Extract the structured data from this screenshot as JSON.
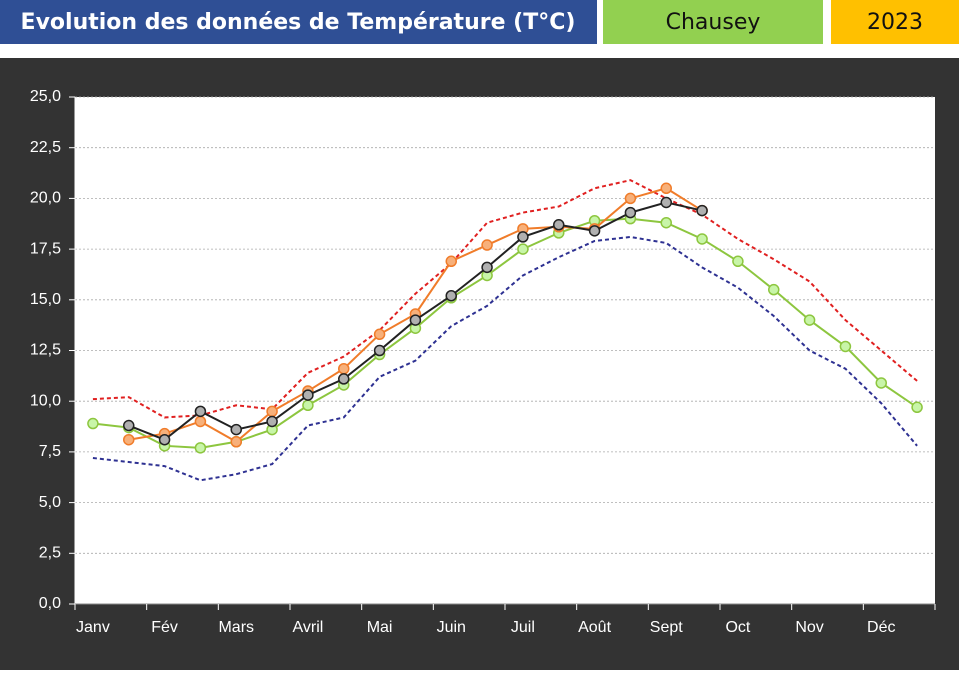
{
  "header": {
    "title": "Evolution des données de Température (T°C)",
    "site": "Chausey",
    "year": "2023"
  },
  "chart_data": {
    "type": "line",
    "categories": [
      "Janv",
      null,
      "Fév",
      null,
      "Mars",
      null,
      "Avril",
      null,
      "Mai",
      null,
      "Juin",
      null,
      "Juil",
      null,
      "Août",
      null,
      "Sept",
      null,
      "Oct",
      null,
      "Nov",
      null,
      "Déc",
      null
    ],
    "series": [
      {
        "color": "#e02020",
        "dashed": true,
        "markers": false,
        "values": [
          10.1,
          10.2,
          9.2,
          9.3,
          9.8,
          9.6,
          11.4,
          12.2,
          13.5,
          15.3,
          16.8,
          18.8,
          19.3,
          19.6,
          20.5,
          20.9,
          20.0,
          19.2,
          18.0,
          17.0,
          15.9,
          14.0,
          12.5,
          11.0
        ]
      },
      {
        "color": "#2e3192",
        "dashed": true,
        "markers": false,
        "values": [
          7.2,
          7.0,
          6.8,
          6.1,
          6.4,
          6.9,
          8.8,
          9.2,
          11.2,
          12.0,
          13.7,
          14.7,
          16.2,
          17.1,
          17.9,
          18.1,
          17.8,
          16.6,
          15.6,
          14.2,
          12.5,
          11.6,
          9.9,
          7.8
        ]
      },
      {
        "color": "#8dc63f",
        "marker_color": "#c8f5a8",
        "dashed": false,
        "markers": true,
        "values": [
          8.9,
          8.7,
          7.8,
          7.7,
          8.0,
          8.6,
          9.8,
          10.8,
          12.3,
          13.6,
          15.1,
          16.2,
          17.5,
          18.3,
          18.9,
          19.0,
          18.8,
          18.0,
          16.9,
          15.5,
          14.0,
          12.7,
          10.9,
          9.7
        ]
      },
      {
        "color": "#f07c2a",
        "marker_color": "#f7b07a",
        "dashed": false,
        "markers": true,
        "values": [
          null,
          8.1,
          8.4,
          9.0,
          8.0,
          9.5,
          10.5,
          11.6,
          13.3,
          14.3,
          16.9,
          17.7,
          18.5,
          18.6,
          18.5,
          20.0,
          20.5,
          19.4,
          null,
          null,
          null,
          null,
          null,
          null
        ]
      },
      {
        "color": "#222222",
        "marker_color": "#b0b0b0",
        "dashed": false,
        "markers": true,
        "values": [
          null,
          8.8,
          8.1,
          9.5,
          8.6,
          9.0,
          10.3,
          11.1,
          12.5,
          14.0,
          15.2,
          16.6,
          18.1,
          18.7,
          18.4,
          19.3,
          19.8,
          19.4,
          null,
          null,
          null,
          null,
          null,
          null
        ]
      }
    ],
    "ylim": [
      0,
      25
    ],
    "yticks": [
      {
        "value": 0,
        "label": "0,0"
      },
      {
        "value": 2.5,
        "label": "2,5"
      },
      {
        "value": 5,
        "label": "5,0"
      },
      {
        "value": 7.5,
        "label": "7,5"
      },
      {
        "value": 10,
        "label": "10,0"
      },
      {
        "value": 12.5,
        "label": "12,5"
      },
      {
        "value": 15,
        "label": "15,0"
      },
      {
        "value": 17.5,
        "label": "17,5"
      },
      {
        "value": 20,
        "label": "20,0"
      },
      {
        "value": 22.5,
        "label": "22,5"
      },
      {
        "value": 25,
        "label": "25,0"
      }
    ],
    "grid": true
  }
}
